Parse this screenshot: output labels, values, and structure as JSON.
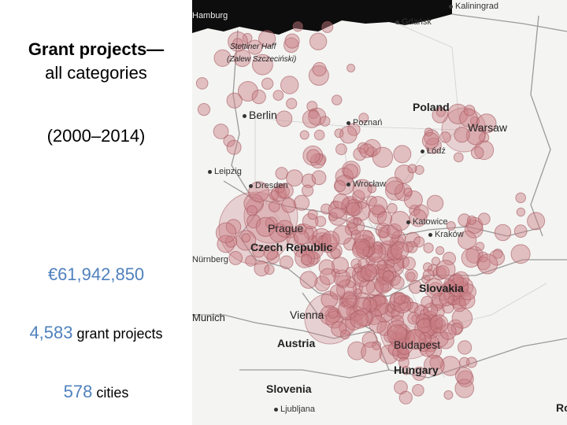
{
  "panel": {
    "title_line1": "Grant projects—",
    "title_line2": "all categories",
    "years": "(2000–2014)",
    "amount": "€61,942,850",
    "projects_count": "4,583",
    "projects_label": " grant projects",
    "cities_count": "578",
    "cities_label": " cities",
    "accent_color": "#4f81bd"
  },
  "map": {
    "bubble_color": "#c97f86",
    "sea_color": "#0d0d0d",
    "labels": [
      {
        "text": "Kaliningrad"
      },
      {
        "text": "Gdańsk"
      },
      {
        "text": "Poland"
      },
      {
        "text": "Warsaw"
      },
      {
        "text": "Berlin"
      },
      {
        "text": "Poznań"
      },
      {
        "text": "Łódź"
      },
      {
        "text": "Leipzig"
      },
      {
        "text": "Dresden"
      },
      {
        "text": "Wrocław"
      },
      {
        "text": "Katowice"
      },
      {
        "text": "Kraków"
      },
      {
        "text": "Prague"
      },
      {
        "text": "Czech Republic"
      },
      {
        "text": "Slovakia"
      },
      {
        "text": "Vienna"
      },
      {
        "text": "Munich"
      },
      {
        "text": "Austria"
      },
      {
        "text": "Budapest"
      },
      {
        "text": "Hungary"
      },
      {
        "text": "Slovenia"
      },
      {
        "text": "Ljubljana"
      },
      {
        "text": "Stettiner Haff"
      },
      {
        "text": "(Zalew Szczeciński)"
      },
      {
        "text": "Hamburg"
      },
      {
        "text": "Nürnberg"
      },
      {
        "text": "Ro"
      }
    ]
  }
}
